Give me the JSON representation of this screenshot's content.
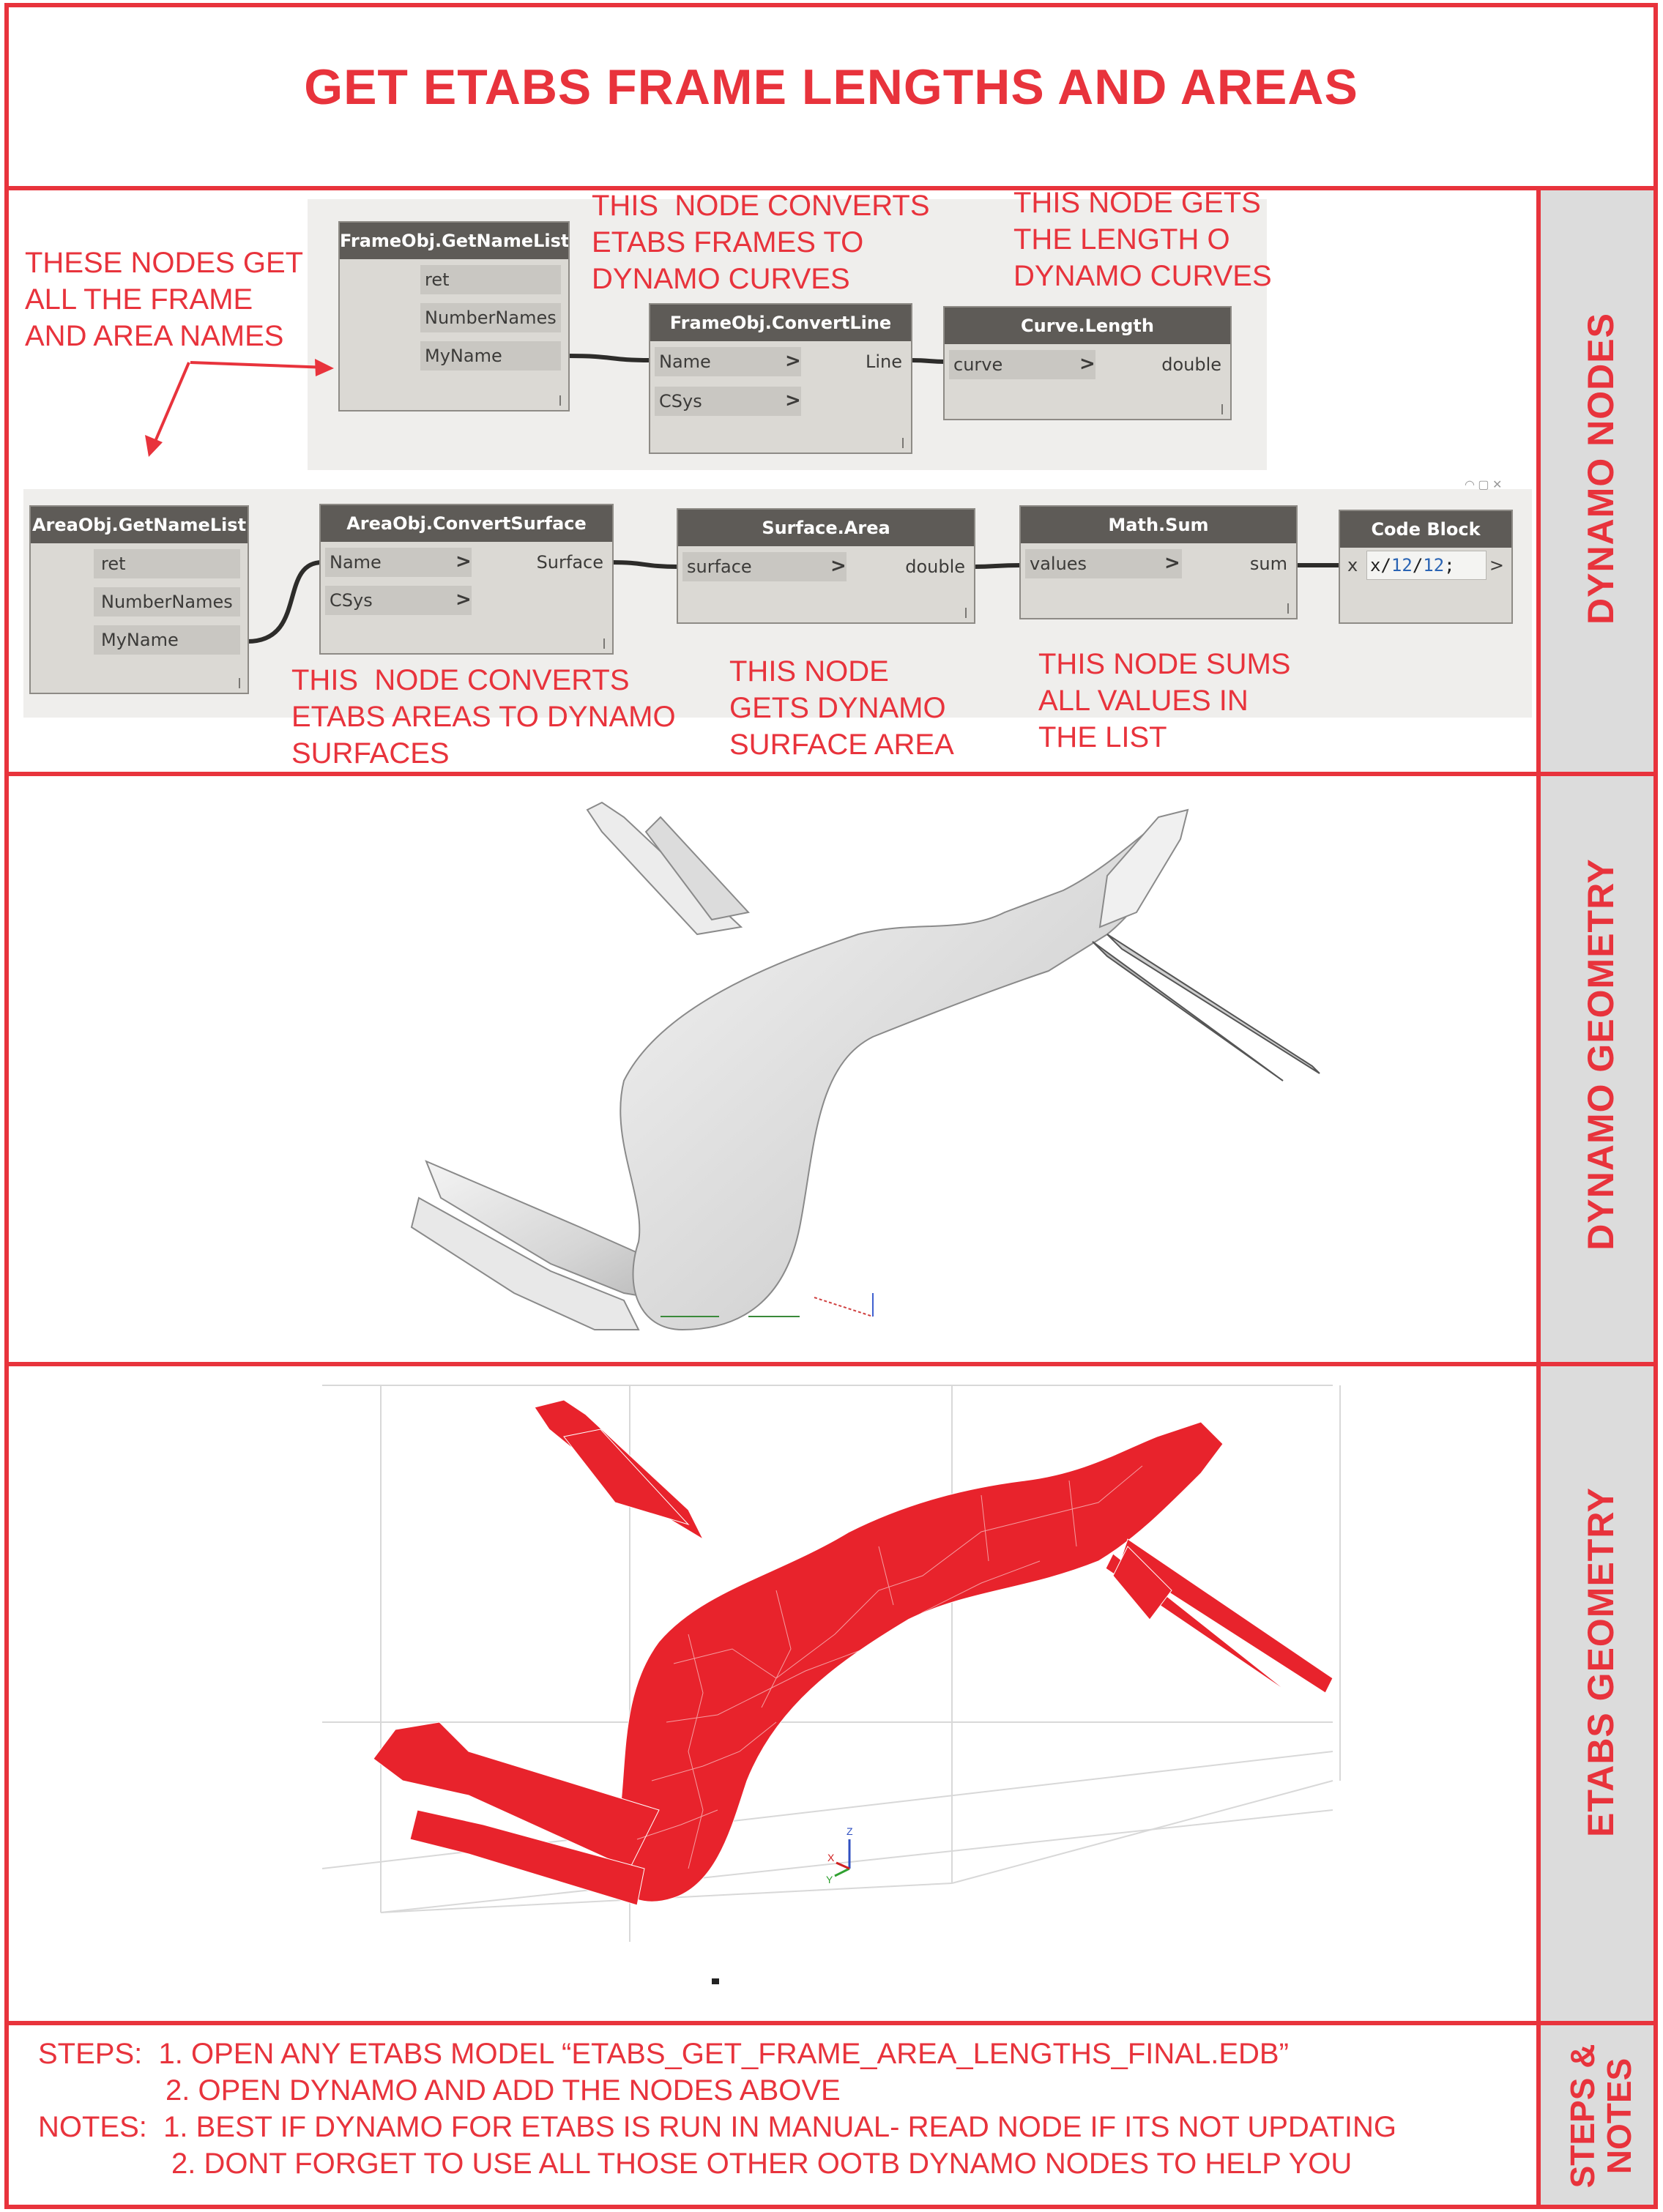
{
  "title": "GET ETABS FRAME LENGTHS AND AREAS",
  "sections": {
    "dynamo_nodes": "DYNAMO NODES",
    "dynamo_geometry": "DYNAMO  GEOMETRY",
    "etabs_geometry": "ETABS GEOMETRY",
    "steps_notes_line1": "STEPS &",
    "steps_notes_line2": "NOTES"
  },
  "annotations": {
    "get_names": "THESE NODES GET\nALL THE FRAME\nAND AREA NAMES",
    "convert_frames": "THIS  NODE CONVERTS\nETABS FRAMES TO\nDYNAMO CURVES",
    "get_length": "THIS NODE GETS\nTHE LENGTH O\nDYNAMO CURVES",
    "convert_areas": "THIS  NODE CONVERTS\nETABS AREAS TO DYNAMO\nSURFACES",
    "surface_area": "THIS NODE\nGETS DYNAMO\nSURFACE AREA",
    "sum_values": "THIS NODE SUMS\nALL VALUES IN\nTHE LIST"
  },
  "nodes": {
    "frame_get_name_list": {
      "title": "FrameObj.GetNameList",
      "outputs": [
        "ret",
        "NumberNames",
        "MyName"
      ]
    },
    "frame_convert_line": {
      "title": "FrameObj.ConvertLine",
      "inputs": [
        "Name",
        "CSys"
      ],
      "output": "Line"
    },
    "curve_length": {
      "title": "Curve.Length",
      "input": "curve",
      "output": "double"
    },
    "area_get_name_list": {
      "title": "AreaObj.GetNameList",
      "outputs": [
        "ret",
        "NumberNames",
        "MyName"
      ]
    },
    "area_convert_surface": {
      "title": "AreaObj.ConvertSurface",
      "inputs": [
        "Name",
        "CSys"
      ],
      "output": "Surface"
    },
    "surface_area": {
      "title": "Surface.Area",
      "input": "surface",
      "output": "double"
    },
    "math_sum": {
      "title": "Math.Sum",
      "input": "values",
      "output": "sum"
    },
    "code_block": {
      "title": "Code Block",
      "input": "x",
      "code_prefix": "x/",
      "code_num1": "12",
      "code_slash": "/",
      "code_num2": "12",
      "code_semi": ";",
      "output": ">"
    }
  },
  "axis_labels": {
    "z": "Z",
    "x": "X",
    "y": "Y"
  },
  "steps": {
    "line1": "STEPS:  1. OPEN ANY ETABS MODEL “ETABS_GET_FRAME_AREA_LENGTHS_FINAL.EDB”",
    "line2": "2. OPEN DYNAMO AND ADD THE NODES ABOVE",
    "line3": "NOTES:  1. BEST IF DYNAMO FOR ETABS IS RUN IN MANUAL- READ NODE IF ITS NOT UPDATING",
    "line4": "2. DONT FORGET TO USE ALL THOSE OTHER OOTB DYNAMO NODES TO HELP YOU"
  },
  "colors": {
    "accent_red": "#e8333c",
    "node_header": "#5e5b57",
    "node_body": "#dbd9d4",
    "sidebar": "#dcdcdc"
  }
}
